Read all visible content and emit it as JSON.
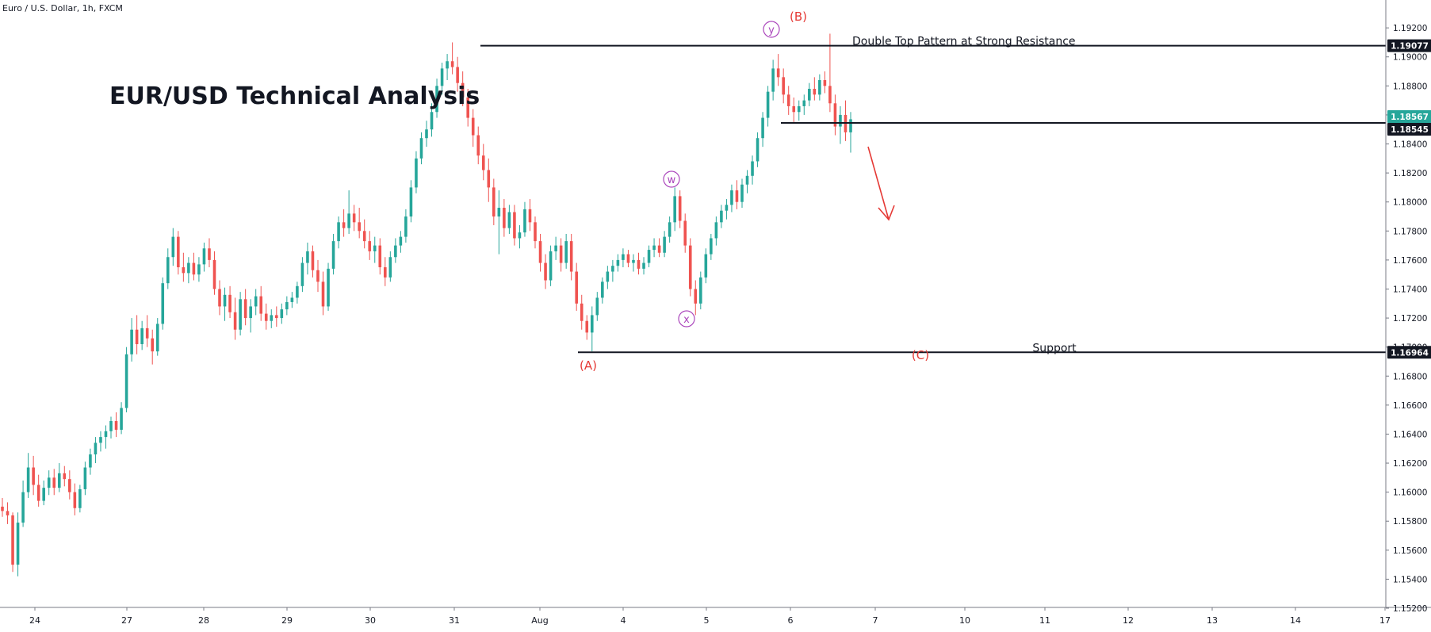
{
  "chart_data": {
    "type": "candlestick",
    "symbol_header": "Euro / U.S. Dollar, 1h, FXCM",
    "title": "EUR/USD Technical Analysis",
    "xlabel": "",
    "ylabel": "",
    "ylim": [
      1.152,
      1.1925
    ],
    "x_ticks": [
      "24",
      "27",
      "28",
      "29",
      "30",
      "31",
      "Aug",
      "4",
      "5",
      "6",
      "7",
      "10",
      "11",
      "12",
      "13",
      "14",
      "17"
    ],
    "y_ticks": [
      "1.19200",
      "1.19000",
      "1.18800",
      "1.18600",
      "1.18400",
      "1.18200",
      "1.18000",
      "1.17800",
      "1.17600",
      "1.17400",
      "1.17200",
      "1.17000",
      "1.16800",
      "1.16600",
      "1.16400",
      "1.16200",
      "1.16000",
      "1.15800",
      "1.15600",
      "1.15400",
      "1.15200"
    ],
    "price_badges": [
      {
        "label": "1.19077",
        "value": 1.19077,
        "color": "#131722"
      },
      {
        "label": "1.18567",
        "value": 1.18567,
        "color": "#26a69a"
      },
      {
        "label": "1.18545",
        "value": 1.18545,
        "color": "#131722"
      },
      {
        "label": "1.16964",
        "value": 1.16964,
        "color": "#131722"
      }
    ],
    "levels": [
      {
        "name": "resistance",
        "value": 1.19077,
        "x_start": "31",
        "label": "Double Top Pattern at Strong Resistance"
      },
      {
        "name": "neckline",
        "value": 1.18545,
        "x_start": "6",
        "label": ""
      },
      {
        "name": "support",
        "value": 1.16964,
        "x_start": "Aug",
        "label": "Support"
      }
    ],
    "wave_labels": [
      {
        "label": "(A)",
        "color": "#e53935",
        "style": "plain"
      },
      {
        "label": "(B)",
        "color": "#e53935",
        "style": "plain"
      },
      {
        "label": "(C)",
        "color": "#e53935",
        "style": "plain"
      },
      {
        "label": "w",
        "color": "#ab47bc",
        "style": "circle"
      },
      {
        "label": "x",
        "color": "#ab47bc",
        "style": "circle"
      },
      {
        "label": "y",
        "color": "#ab47bc",
        "style": "circle"
      }
    ],
    "arrow": {
      "direction": "down",
      "color": "#e53935"
    },
    "colors": {
      "up": "#26a69a",
      "down": "#ef5350",
      "line": "#131722",
      "axis": "#787b86"
    },
    "candles": [
      [
        1.159,
        1.1596,
        1.1583,
        1.1587
      ],
      [
        1.1587,
        1.1593,
        1.1578,
        1.1584
      ],
      [
        1.1584,
        1.1586,
        1.1545,
        1.155
      ],
      [
        1.155,
        1.1586,
        1.1542,
        1.1579
      ],
      [
        1.1579,
        1.1608,
        1.1576,
        1.16
      ],
      [
        1.16,
        1.1627,
        1.1596,
        1.1617
      ],
      [
        1.1617,
        1.1625,
        1.1598,
        1.1605
      ],
      [
        1.1605,
        1.1612,
        1.159,
        1.1594
      ],
      [
        1.1594,
        1.1608,
        1.1591,
        1.1603
      ],
      [
        1.1603,
        1.1615,
        1.1598,
        1.161
      ],
      [
        1.161,
        1.1616,
        1.1598,
        1.1603
      ],
      [
        1.1603,
        1.162,
        1.16,
        1.1613
      ],
      [
        1.1613,
        1.1618,
        1.1604,
        1.1609
      ],
      [
        1.1609,
        1.1615,
        1.1595,
        1.16
      ],
      [
        1.16,
        1.1606,
        1.1584,
        1.1589
      ],
      [
        1.1589,
        1.1605,
        1.1586,
        1.1602
      ],
      [
        1.1602,
        1.1621,
        1.1598,
        1.1617
      ],
      [
        1.1617,
        1.163,
        1.1612,
        1.1626
      ],
      [
        1.1626,
        1.1638,
        1.162,
        1.1634
      ],
      [
        1.1634,
        1.1642,
        1.1628,
        1.1638
      ],
      [
        1.1638,
        1.1646,
        1.163,
        1.1642
      ],
      [
        1.1642,
        1.1652,
        1.1637,
        1.1649
      ],
      [
        1.1649,
        1.1655,
        1.1638,
        1.1643
      ],
      [
        1.1643,
        1.1662,
        1.164,
        1.1658
      ],
      [
        1.1658,
        1.17,
        1.1655,
        1.1695
      ],
      [
        1.1695,
        1.172,
        1.169,
        1.1712
      ],
      [
        1.1712,
        1.1722,
        1.1695,
        1.1702
      ],
      [
        1.1702,
        1.1718,
        1.1698,
        1.1713
      ],
      [
        1.1713,
        1.1722,
        1.17,
        1.1706
      ],
      [
        1.1706,
        1.1712,
        1.1688,
        1.1697
      ],
      [
        1.1697,
        1.172,
        1.1694,
        1.1716
      ],
      [
        1.1716,
        1.1748,
        1.1712,
        1.1744
      ],
      [
        1.1744,
        1.1768,
        1.174,
        1.1762
      ],
      [
        1.1762,
        1.1782,
        1.1756,
        1.1776
      ],
      [
        1.1776,
        1.178,
        1.175,
        1.1755
      ],
      [
        1.1755,
        1.1765,
        1.1745,
        1.1751
      ],
      [
        1.1751,
        1.1762,
        1.1744,
        1.1758
      ],
      [
        1.1758,
        1.1765,
        1.1746,
        1.175
      ],
      [
        1.175,
        1.1762,
        1.1745,
        1.1757
      ],
      [
        1.1757,
        1.1772,
        1.1752,
        1.1768
      ],
      [
        1.1768,
        1.1775,
        1.1755,
        1.176
      ],
      [
        1.176,
        1.1766,
        1.1736,
        1.174
      ],
      [
        1.174,
        1.1746,
        1.1722,
        1.1728
      ],
      [
        1.1728,
        1.1741,
        1.1718,
        1.1736
      ],
      [
        1.1736,
        1.1742,
        1.172,
        1.1724
      ],
      [
        1.1724,
        1.1734,
        1.1705,
        1.1712
      ],
      [
        1.1712,
        1.1738,
        1.1708,
        1.1733
      ],
      [
        1.1733,
        1.174,
        1.1715,
        1.172
      ],
      [
        1.172,
        1.1733,
        1.171,
        1.1728
      ],
      [
        1.1728,
        1.174,
        1.1722,
        1.1735
      ],
      [
        1.1735,
        1.1742,
        1.1718,
        1.1723
      ],
      [
        1.1723,
        1.173,
        1.1712,
        1.1718
      ],
      [
        1.1718,
        1.1726,
        1.1713,
        1.1722
      ],
      [
        1.1722,
        1.1728,
        1.1714,
        1.172
      ],
      [
        1.172,
        1.173,
        1.1716,
        1.1726
      ],
      [
        1.1726,
        1.1735,
        1.1722,
        1.1731
      ],
      [
        1.1731,
        1.1738,
        1.1727,
        1.1734
      ],
      [
        1.1734,
        1.1745,
        1.173,
        1.1742
      ],
      [
        1.1742,
        1.1762,
        1.1738,
        1.1758
      ],
      [
        1.1758,
        1.1772,
        1.175,
        1.1766
      ],
      [
        1.1766,
        1.177,
        1.1748,
        1.1753
      ],
      [
        1.1753,
        1.176,
        1.1738,
        1.1745
      ],
      [
        1.1745,
        1.1752,
        1.1722,
        1.1728
      ],
      [
        1.1728,
        1.1758,
        1.1725,
        1.1754
      ],
      [
        1.1754,
        1.1778,
        1.175,
        1.1773
      ],
      [
        1.1773,
        1.179,
        1.1768,
        1.1786
      ],
      [
        1.1786,
        1.1795,
        1.1776,
        1.1782
      ],
      [
        1.1782,
        1.1808,
        1.1778,
        1.1792
      ],
      [
        1.1792,
        1.1798,
        1.178,
        1.1786
      ],
      [
        1.1786,
        1.1796,
        1.1775,
        1.178
      ],
      [
        1.178,
        1.1788,
        1.1768,
        1.1773
      ],
      [
        1.1773,
        1.178,
        1.176,
        1.1766
      ],
      [
        1.1766,
        1.1776,
        1.1758,
        1.177
      ],
      [
        1.177,
        1.1775,
        1.175,
        1.1755
      ],
      [
        1.1755,
        1.1762,
        1.1742,
        1.1748
      ],
      [
        1.1748,
        1.1766,
        1.1745,
        1.1762
      ],
      [
        1.1762,
        1.1775,
        1.1758,
        1.177
      ],
      [
        1.177,
        1.178,
        1.1765,
        1.1776
      ],
      [
        1.1776,
        1.1795,
        1.1772,
        1.179
      ],
      [
        1.179,
        1.1815,
        1.1786,
        1.181
      ],
      [
        1.181,
        1.1835,
        1.1806,
        1.183
      ],
      [
        1.183,
        1.1848,
        1.1826,
        1.1844
      ],
      [
        1.1844,
        1.1856,
        1.1838,
        1.185
      ],
      [
        1.185,
        1.1868,
        1.1845,
        1.1862
      ],
      [
        1.1862,
        1.1885,
        1.1858,
        1.188
      ],
      [
        1.188,
        1.1896,
        1.1874,
        1.1892
      ],
      [
        1.1892,
        1.1902,
        1.1884,
        1.1897
      ],
      [
        1.1897,
        1.191,
        1.1888,
        1.1893
      ],
      [
        1.1893,
        1.19,
        1.1876,
        1.1882
      ],
      [
        1.1882,
        1.189,
        1.1866,
        1.1872
      ],
      [
        1.1872,
        1.1878,
        1.1852,
        1.1858
      ],
      [
        1.1858,
        1.1864,
        1.1838,
        1.1846
      ],
      [
        1.1846,
        1.1852,
        1.1826,
        1.1832
      ],
      [
        1.1832,
        1.184,
        1.1815,
        1.1822
      ],
      [
        1.1822,
        1.183,
        1.18,
        1.181
      ],
      [
        1.181,
        1.1816,
        1.1784,
        1.179
      ],
      [
        1.179,
        1.1808,
        1.1764,
        1.1796
      ],
      [
        1.1796,
        1.1802,
        1.1776,
        1.1782
      ],
      [
        1.1782,
        1.1798,
        1.1778,
        1.1793
      ],
      [
        1.1793,
        1.1798,
        1.177,
        1.1775
      ],
      [
        1.1775,
        1.1784,
        1.1768,
        1.1779
      ],
      [
        1.1779,
        1.18,
        1.1776,
        1.1795
      ],
      [
        1.1795,
        1.1802,
        1.178,
        1.1786
      ],
      [
        1.1786,
        1.179,
        1.1768,
        1.1773
      ],
      [
        1.1773,
        1.1778,
        1.1752,
        1.1758
      ],
      [
        1.1758,
        1.1764,
        1.174,
        1.1746
      ],
      [
        1.1746,
        1.177,
        1.1742,
        1.1766
      ],
      [
        1.1766,
        1.1776,
        1.176,
        1.177
      ],
      [
        1.177,
        1.1775,
        1.1752,
        1.1758
      ],
      [
        1.1758,
        1.1778,
        1.1754,
        1.1773
      ],
      [
        1.1773,
        1.1778,
        1.1746,
        1.1752
      ],
      [
        1.1752,
        1.1758,
        1.1725,
        1.173
      ],
      [
        1.173,
        1.1736,
        1.1712,
        1.1718
      ],
      [
        1.1718,
        1.1722,
        1.1705,
        1.171
      ],
      [
        1.171,
        1.1728,
        1.1697,
        1.1722
      ],
      [
        1.1722,
        1.1738,
        1.1718,
        1.1734
      ],
      [
        1.1734,
        1.1748,
        1.173,
        1.1745
      ],
      [
        1.1745,
        1.1756,
        1.174,
        1.1752
      ],
      [
        1.1752,
        1.176,
        1.1745,
        1.1756
      ],
      [
        1.1756,
        1.1764,
        1.1752,
        1.176
      ],
      [
        1.176,
        1.1768,
        1.1755,
        1.1764
      ],
      [
        1.1764,
        1.1767,
        1.1755,
        1.1758
      ],
      [
        1.1758,
        1.1764,
        1.1752,
        1.176
      ],
      [
        1.176,
        1.1765,
        1.175,
        1.1754
      ],
      [
        1.1754,
        1.1762,
        1.175,
        1.1758
      ],
      [
        1.1758,
        1.177,
        1.1755,
        1.1767
      ],
      [
        1.1767,
        1.1775,
        1.1762,
        1.177
      ],
      [
        1.177,
        1.1775,
        1.1762,
        1.1765
      ],
      [
        1.1765,
        1.178,
        1.1762,
        1.1776
      ],
      [
        1.1776,
        1.179,
        1.1772,
        1.1786
      ],
      [
        1.1786,
        1.181,
        1.178,
        1.1804
      ],
      [
        1.1804,
        1.1808,
        1.1782,
        1.1787
      ],
      [
        1.1787,
        1.1792,
        1.1765,
        1.177
      ],
      [
        1.177,
        1.1775,
        1.1735,
        1.174
      ],
      [
        1.174,
        1.1746,
        1.1722,
        1.173
      ],
      [
        1.173,
        1.1752,
        1.1726,
        1.1748
      ],
      [
        1.1748,
        1.1768,
        1.1744,
        1.1764
      ],
      [
        1.1764,
        1.1778,
        1.176,
        1.1775
      ],
      [
        1.1775,
        1.179,
        1.177,
        1.1786
      ],
      [
        1.1786,
        1.1798,
        1.1782,
        1.1794
      ],
      [
        1.1794,
        1.1802,
        1.1788,
        1.1798
      ],
      [
        1.1798,
        1.1812,
        1.1793,
        1.1808
      ],
      [
        1.1808,
        1.1815,
        1.1795,
        1.18
      ],
      [
        1.18,
        1.1816,
        1.1796,
        1.1812
      ],
      [
        1.1812,
        1.1822,
        1.1806,
        1.1818
      ],
      [
        1.1818,
        1.1832,
        1.1812,
        1.1828
      ],
      [
        1.1828,
        1.1848,
        1.1824,
        1.1844
      ],
      [
        1.1844,
        1.1862,
        1.1838,
        1.1858
      ],
      [
        1.1858,
        1.188,
        1.1852,
        1.1876
      ],
      [
        1.1876,
        1.1898,
        1.187,
        1.1892
      ],
      [
        1.1892,
        1.1902,
        1.188,
        1.1886
      ],
      [
        1.1886,
        1.1892,
        1.1868,
        1.1874
      ],
      [
        1.1874,
        1.188,
        1.186,
        1.1866
      ],
      [
        1.1866,
        1.1872,
        1.1855,
        1.1862
      ],
      [
        1.1862,
        1.187,
        1.1856,
        1.1866
      ],
      [
        1.1866,
        1.1874,
        1.186,
        1.187
      ],
      [
        1.187,
        1.1882,
        1.1866,
        1.1878
      ],
      [
        1.1878,
        1.1886,
        1.187,
        1.1874
      ],
      [
        1.1874,
        1.1888,
        1.187,
        1.1884
      ],
      [
        1.1884,
        1.189,
        1.1875,
        1.188
      ],
      [
        1.188,
        1.1916,
        1.1862,
        1.1868
      ],
      [
        1.1868,
        1.1874,
        1.1846,
        1.1852
      ],
      [
        1.1852,
        1.1866,
        1.184,
        1.186
      ],
      [
        1.186,
        1.187,
        1.1842,
        1.1848
      ],
      [
        1.1848,
        1.1862,
        1.1834,
        1.1857
      ]
    ]
  }
}
